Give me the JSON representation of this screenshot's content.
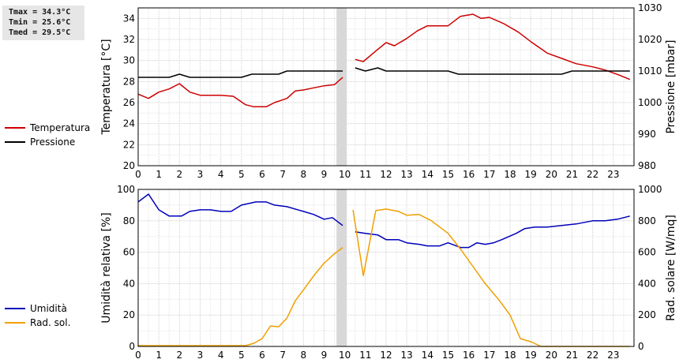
{
  "stats": {
    "tmax": "Tmax = 34.3°C",
    "tmin": "Tmin = 25.6°C",
    "tmed": "Tmed = 29.5°C"
  },
  "legend_top": [
    {
      "label": "Temperatura",
      "color": "#cc0000"
    },
    {
      "label": "Pressione",
      "color": "#000000"
    }
  ],
  "legend_bottom": [
    {
      "label": "Umidità",
      "color": "#0000bb"
    },
    {
      "label": "Rad. sol.",
      "color": "#f0a000"
    }
  ],
  "chart_data": [
    {
      "type": "line",
      "xlim": [
        0,
        24
      ],
      "x_ticks": [
        "0",
        "1",
        "2",
        "3",
        "4",
        "5",
        "6",
        "7",
        "8",
        "9",
        "10",
        "11",
        "12",
        "13",
        "14",
        "15",
        "16",
        "17",
        "18",
        "19",
        "20",
        "21",
        "22",
        "23"
      ],
      "ylabel": "Temperatura [°C]",
      "ylim": [
        20,
        35
      ],
      "y_ticks": [
        "20",
        "22",
        "24",
        "26",
        "28",
        "30",
        "32",
        "34"
      ],
      "y2label": "Pressione [mbar]",
      "y2lim": [
        980,
        1030
      ],
      "y2_ticks": [
        "980",
        "990",
        "1000",
        "1010",
        "1020",
        "1030"
      ],
      "grid": true,
      "gap": [
        9.6,
        10.1
      ],
      "series": [
        {
          "name": "Temperatura",
          "axis": "left",
          "color": "#cc0000",
          "segments": [
            [
              [
                0,
                26.8
              ],
              [
                0.5,
                26.4
              ],
              [
                1,
                27.0
              ],
              [
                1.5,
                27.3
              ],
              [
                2,
                27.8
              ],
              [
                2.5,
                27.0
              ],
              [
                3,
                26.7
              ],
              [
                3.5,
                26.7
              ],
              [
                4,
                26.7
              ],
              [
                4.6,
                26.6
              ],
              [
                5.2,
                25.8
              ],
              [
                5.6,
                25.6
              ],
              [
                6.2,
                25.6
              ],
              [
                6.6,
                26.0
              ],
              [
                7.2,
                26.4
              ],
              [
                7.6,
                27.1
              ],
              [
                8,
                27.2
              ],
              [
                8.5,
                27.4
              ],
              [
                9,
                27.6
              ],
              [
                9.5,
                27.7
              ],
              [
                9.9,
                28.4
              ]
            ],
            [
              [
                10.5,
                30.1
              ],
              [
                10.9,
                29.9
              ],
              [
                11.5,
                30.9
              ],
              [
                12,
                31.7
              ],
              [
                12.4,
                31.4
              ],
              [
                13,
                32.1
              ],
              [
                13.5,
                32.8
              ],
              [
                14,
                33.3
              ],
              [
                15,
                33.3
              ],
              [
                15.6,
                34.2
              ],
              [
                16.2,
                34.4
              ],
              [
                16.6,
                34.0
              ],
              [
                17,
                34.1
              ],
              [
                17.7,
                33.5
              ],
              [
                18.4,
                32.7
              ],
              [
                19,
                31.8
              ],
              [
                19.8,
                30.7
              ],
              [
                20.5,
                30.2
              ],
              [
                21.2,
                29.7
              ],
              [
                22,
                29.4
              ],
              [
                22.6,
                29.1
              ],
              [
                23.3,
                28.6
              ],
              [
                23.8,
                28.2
              ]
            ]
          ]
        },
        {
          "name": "Pressione",
          "axis": "right",
          "color": "#000000",
          "segments": [
            [
              [
                0,
                1008
              ],
              [
                1.5,
                1008
              ],
              [
                2,
                1009
              ],
              [
                2.5,
                1008
              ],
              [
                3,
                1008
              ],
              [
                5,
                1008
              ],
              [
                5.5,
                1009
              ],
              [
                6.8,
                1009
              ],
              [
                7.2,
                1010
              ],
              [
                9.9,
                1010
              ]
            ],
            [
              [
                10.5,
                1011
              ],
              [
                11,
                1010
              ],
              [
                11.6,
                1011
              ],
              [
                12,
                1010
              ],
              [
                13,
                1010
              ],
              [
                15,
                1010
              ],
              [
                15.5,
                1009
              ],
              [
                20.5,
                1009
              ],
              [
                21,
                1010
              ],
              [
                23.8,
                1010
              ]
            ]
          ]
        }
      ]
    },
    {
      "type": "line",
      "xlim": [
        0,
        24
      ],
      "x_ticks": [
        "0",
        "1",
        "2",
        "3",
        "4",
        "5",
        "6",
        "7",
        "8",
        "9",
        "10",
        "11",
        "12",
        "13",
        "14",
        "15",
        "16",
        "17",
        "18",
        "19",
        "20",
        "21",
        "22",
        "23"
      ],
      "ylabel": "Umidità relativa [%]",
      "ylim": [
        0,
        100
      ],
      "y_ticks": [
        "0",
        "20",
        "40",
        "60",
        "80",
        "100"
      ],
      "y2label": "Rad. solare [W/mq]",
      "y2lim": [
        0,
        1000
      ],
      "y2_ticks": [
        "0",
        "200",
        "400",
        "600",
        "800",
        "1000"
      ],
      "grid": true,
      "gap": [
        9.6,
        10.1
      ],
      "series": [
        {
          "name": "Umidità",
          "axis": "left",
          "color": "#0000bb",
          "segments": [
            [
              [
                0,
                92
              ],
              [
                0.5,
                97
              ],
              [
                1,
                87
              ],
              [
                1.5,
                83
              ],
              [
                2.1,
                83
              ],
              [
                2.5,
                86
              ],
              [
                3,
                87
              ],
              [
                3.5,
                87
              ],
              [
                4,
                86
              ],
              [
                4.5,
                86
              ],
              [
                5,
                90
              ],
              [
                5.7,
                92
              ],
              [
                6.2,
                92
              ],
              [
                6.6,
                90
              ],
              [
                7.2,
                89
              ],
              [
                8,
                86
              ],
              [
                8.5,
                84
              ],
              [
                9,
                81
              ],
              [
                9.4,
                82
              ],
              [
                9.9,
                77
              ]
            ],
            [
              [
                10.5,
                73
              ],
              [
                11,
                72
              ],
              [
                11.6,
                71
              ],
              [
                12,
                68
              ],
              [
                12.6,
                68
              ],
              [
                13,
                66
              ],
              [
                13.6,
                65
              ],
              [
                14,
                64
              ],
              [
                14.6,
                64
              ],
              [
                15,
                66
              ],
              [
                15.6,
                63
              ],
              [
                16,
                63
              ],
              [
                16.4,
                66
              ],
              [
                16.8,
                65
              ],
              [
                17.2,
                66
              ],
              [
                17.6,
                68
              ],
              [
                18.3,
                72
              ],
              [
                18.7,
                75
              ],
              [
                19.2,
                76
              ],
              [
                19.8,
                76
              ],
              [
                20.5,
                77
              ],
              [
                21.2,
                78
              ],
              [
                22,
                80
              ],
              [
                22.6,
                80
              ],
              [
                23.2,
                81
              ],
              [
                23.8,
                83
              ]
            ]
          ]
        },
        {
          "name": "Rad. sol.",
          "axis": "right",
          "color": "#f0a000",
          "segments": [
            [
              [
                0,
                5
              ],
              [
                5.2,
                5
              ],
              [
                5.6,
                20
              ],
              [
                6,
                50
              ],
              [
                6.4,
                130
              ],
              [
                6.8,
                125
              ],
              [
                7.2,
                180
              ],
              [
                7.6,
                290
              ],
              [
                8,
                360
              ],
              [
                8.5,
                450
              ],
              [
                9,
                530
              ],
              [
                9.5,
                590
              ],
              [
                9.9,
                630
              ]
            ],
            [
              [
                10.4,
                870
              ],
              [
                10.9,
                450
              ],
              [
                11.5,
                865
              ],
              [
                12,
                875
              ],
              [
                12.6,
                860
              ],
              [
                13,
                835
              ],
              [
                13.6,
                840
              ],
              [
                14.2,
                800
              ],
              [
                14.6,
                760
              ],
              [
                15,
                720
              ],
              [
                15.6,
                620
              ],
              [
                16.2,
                510
              ],
              [
                16.8,
                400
              ],
              [
                17.5,
                290
              ],
              [
                18,
                200
              ],
              [
                18.5,
                50
              ],
              [
                19,
                30
              ],
              [
                19.5,
                0
              ],
              [
                20,
                0
              ],
              [
                23.8,
                0
              ]
            ]
          ]
        }
      ]
    }
  ]
}
